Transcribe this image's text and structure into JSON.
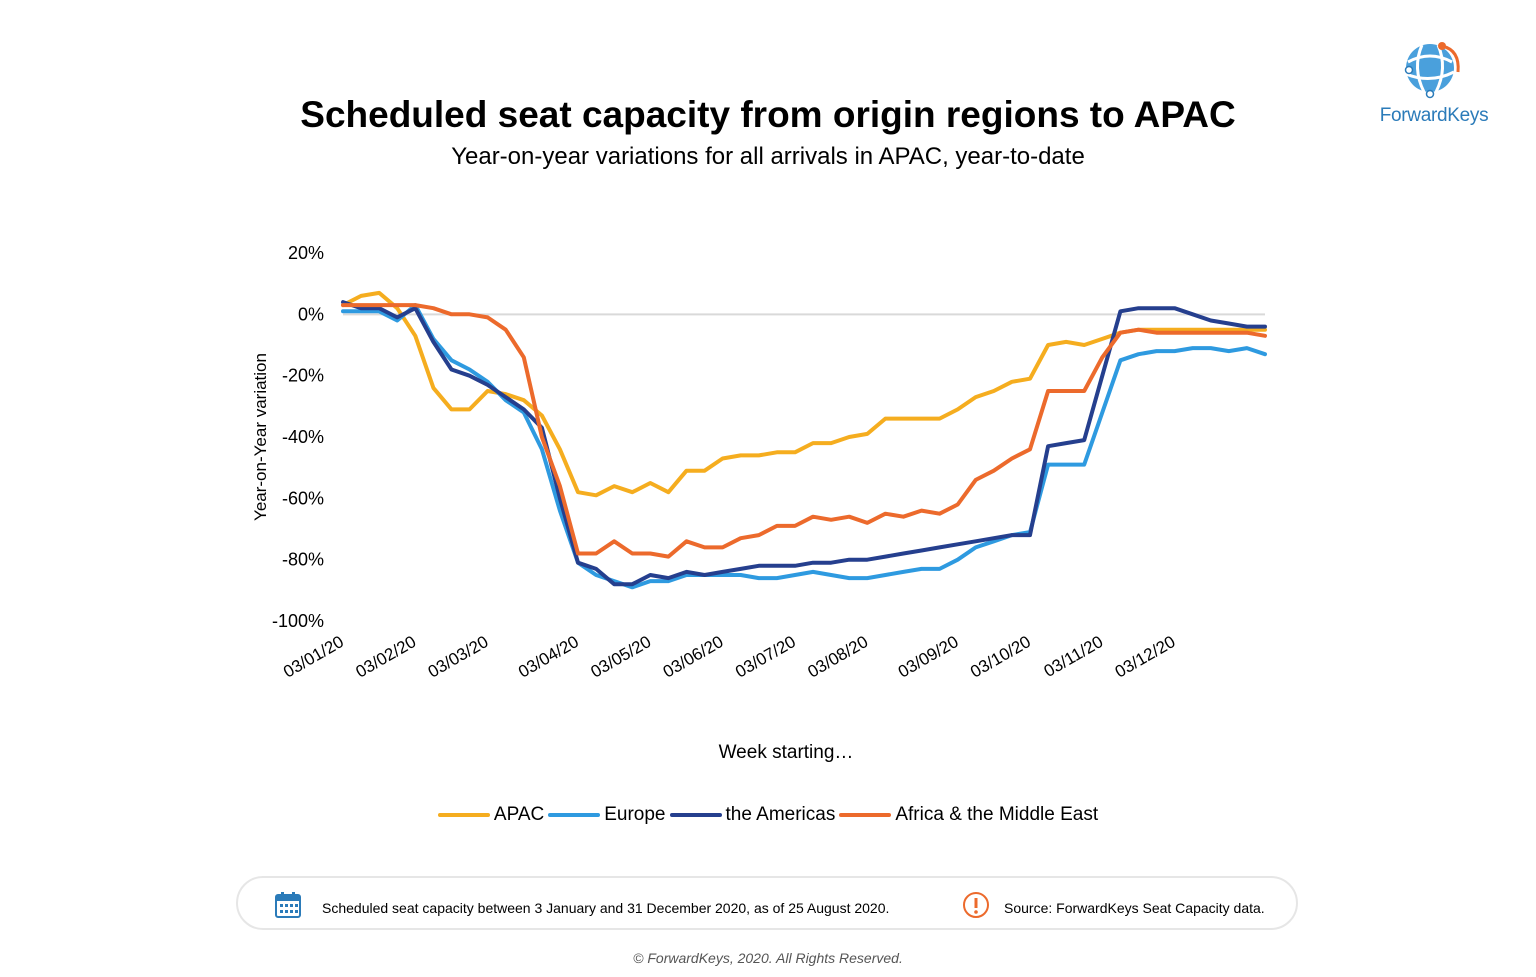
{
  "header": {
    "title": "Scheduled seat capacity from origin regions to APAC",
    "subtitle": "Year-on-year variations for all arrivals in APAC, year-to-date"
  },
  "logo": {
    "text": "ForwardKeys",
    "icon": "globe-icon",
    "color": "#2b7bb9"
  },
  "chart_data": {
    "type": "line",
    "ylabel": "Year-on-Year variation",
    "xlabel": "Week starting…",
    "ylim": [
      -100,
      20
    ],
    "yticks": [
      20,
      0,
      -20,
      -40,
      -60,
      -80,
      -100
    ],
    "ytick_labels": [
      "20%",
      "0%",
      "-20%",
      "-40%",
      "-60%",
      "-80%",
      "-100%"
    ],
    "xtick_labels": [
      "03/01/20",
      "03/02/20",
      "03/03/20",
      "03/04/20",
      "03/05/20",
      "03/06/20",
      "03/07/20",
      "03/08/20",
      "03/09/20",
      "03/10/20",
      "03/11/20",
      "03/12/20"
    ],
    "xtick_weeks": [
      0,
      4,
      8,
      13,
      17,
      21,
      25,
      29,
      34,
      38,
      42,
      46
    ],
    "week_count": 52,
    "zero_line": true,
    "legend_position": "bottom",
    "series": [
      {
        "name": "APAC",
        "color": "#f5ad1f",
        "values": [
          3,
          6,
          7,
          2,
          -7,
          -24,
          -31,
          -31,
          -25,
          -26,
          -28,
          -33,
          -44,
          -58,
          -59,
          -56,
          -58,
          -55,
          -58,
          -51,
          -51,
          -47,
          -46,
          -46,
          -45,
          -45,
          -42,
          -42,
          -40,
          -39,
          -34,
          -34,
          -34,
          -34,
          -31,
          -27,
          -25,
          -22,
          -21,
          -10,
          -9,
          -10,
          -8,
          -6,
          -5,
          -5,
          -5,
          -5,
          -5,
          -5,
          -5,
          -5
        ]
      },
      {
        "name": "Europe",
        "color": "#2e9ae0",
        "values": [
          1,
          1,
          1,
          -2,
          3,
          -8,
          -15,
          -18,
          -22,
          -28,
          -32,
          -44,
          -64,
          -81,
          -85,
          -87,
          -89,
          -87,
          -87,
          -85,
          -85,
          -85,
          -85,
          -86,
          -86,
          -85,
          -84,
          -85,
          -86,
          -86,
          -85,
          -84,
          -83,
          -83,
          -80,
          -76,
          -74,
          -72,
          -71,
          -49,
          -49,
          -49,
          -32,
          -15,
          -13,
          -12,
          -12,
          -11,
          -11,
          -12,
          -11,
          -13
        ]
      },
      {
        "name": "the Americas",
        "color": "#253f8e",
        "values": [
          4,
          2,
          2,
          -1,
          2,
          -9,
          -18,
          -20,
          -23,
          -27,
          -31,
          -37,
          -60,
          -81,
          -83,
          -88,
          -88,
          -85,
          -86,
          -84,
          -85,
          -84,
          -83,
          -82,
          -82,
          -82,
          -81,
          -81,
          -80,
          -80,
          -79,
          -78,
          -77,
          -76,
          -75,
          -74,
          -73,
          -72,
          -72,
          -43,
          -42,
          -41,
          -20,
          1,
          2,
          2,
          2,
          0,
          -2,
          -3,
          -4,
          -4
        ]
      },
      {
        "name": "Africa & the Middle East",
        "color": "#ec6a2c",
        "values": [
          3,
          3,
          3,
          3,
          3,
          2,
          0,
          0,
          -1,
          -5,
          -14,
          -40,
          -56,
          -78,
          -78,
          -74,
          -78,
          -78,
          -79,
          -74,
          -76,
          -76,
          -73,
          -72,
          -69,
          -69,
          -66,
          -67,
          -66,
          -68,
          -65,
          -66,
          -64,
          -65,
          -62,
          -54,
          -51,
          -47,
          -44,
          -25,
          -25,
          -25,
          -14,
          -6,
          -5,
          -6,
          -6,
          -6,
          -6,
          -6,
          -6,
          -7
        ]
      }
    ]
  },
  "footer": {
    "note_icon": "calendar-icon",
    "note": "Scheduled seat capacity between 3 January and 31 December 2020, as of 25 August 2020.",
    "source_icon": "exclamation-icon",
    "source": "Source: ForwardKeys Seat Capacity data.",
    "copyright": "© ForwardKeys, 2020. All Rights Reserved."
  }
}
